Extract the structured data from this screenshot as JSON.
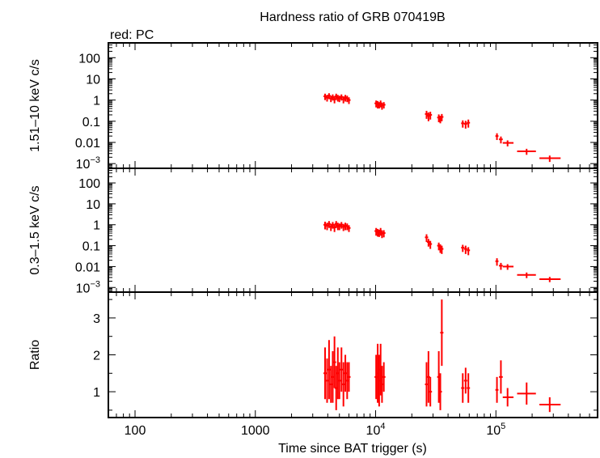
{
  "chart_data": {
    "type": "scatter",
    "title": "Hardness ratio of GRB 070419B",
    "subtitle": "red: PC",
    "xlabel": "Time since BAT trigger (s)",
    "x_scale": "log",
    "xlim": [
      60,
      700000
    ],
    "x_ticks": [
      {
        "value": 100,
        "label": "100"
      },
      {
        "value": 1000,
        "label": "1000"
      },
      {
        "value": 10000,
        "label": "10",
        "exp": "4"
      },
      {
        "value": 100000,
        "label": "10",
        "exp": "5"
      }
    ],
    "series_color": "#ff0000",
    "panels": [
      {
        "name": "hard",
        "ylabel": "1.51–10 keV c/s",
        "y_scale": "log",
        "ylim": [
          0.0006,
          500
        ],
        "y_ticks": [
          {
            "value": 100,
            "label": "100"
          },
          {
            "value": 10,
            "label": "10"
          },
          {
            "value": 1,
            "label": "1"
          },
          {
            "value": 0.1,
            "label": "0.1"
          },
          {
            "value": 0.01,
            "label": "0.01"
          },
          {
            "value": 0.001,
            "label": "10",
            "exp": "−3"
          }
        ],
        "points": [
          {
            "x": 3800,
            "y": 1.5,
            "yerr": 0.5
          },
          {
            "x": 3950,
            "y": 1.3,
            "yerr": 0.45
          },
          {
            "x": 4100,
            "y": 1.6,
            "yerr": 0.5
          },
          {
            "x": 4250,
            "y": 1.2,
            "yerr": 0.4
          },
          {
            "x": 4400,
            "y": 1.4,
            "yerr": 0.45
          },
          {
            "x": 4550,
            "y": 1.1,
            "yerr": 0.4
          },
          {
            "x": 4700,
            "y": 1.5,
            "yerr": 0.5
          },
          {
            "x": 4850,
            "y": 1.3,
            "yerr": 0.45
          },
          {
            "x": 5000,
            "y": 1.2,
            "yerr": 0.4
          },
          {
            "x": 5200,
            "y": 1.4,
            "yerr": 0.45
          },
          {
            "x": 5400,
            "y": 1.1,
            "yerr": 0.4
          },
          {
            "x": 5600,
            "y": 1.3,
            "yerr": 0.45
          },
          {
            "x": 5800,
            "y": 1.2,
            "yerr": 0.4
          },
          {
            "x": 6000,
            "y": 1.0,
            "yerr": 0.35
          },
          {
            "x": 10100,
            "y": 0.7,
            "yerr": 0.25
          },
          {
            "x": 10400,
            "y": 0.65,
            "yerr": 0.25
          },
          {
            "x": 10700,
            "y": 0.6,
            "yerr": 0.2
          },
          {
            "x": 11000,
            "y": 0.7,
            "yerr": 0.25
          },
          {
            "x": 11300,
            "y": 0.55,
            "yerr": 0.2
          },
          {
            "x": 11700,
            "y": 0.6,
            "yerr": 0.2
          },
          {
            "x": 26500,
            "y": 0.22,
            "yerr": 0.09
          },
          {
            "x": 27500,
            "y": 0.18,
            "yerr": 0.08
          },
          {
            "x": 28500,
            "y": 0.2,
            "yerr": 0.08
          },
          {
            "x": 33500,
            "y": 0.15,
            "yerr": 0.06
          },
          {
            "x": 34500,
            "y": 0.13,
            "yerr": 0.05
          },
          {
            "x": 35500,
            "y": 0.16,
            "yerr": 0.06
          },
          {
            "x": 53000,
            "y": 0.08,
            "yerr": 0.03
          },
          {
            "x": 56000,
            "y": 0.075,
            "yerr": 0.03
          },
          {
            "x": 59000,
            "y": 0.085,
            "yerr": 0.035
          },
          {
            "x": 102000,
            "y": 0.02,
            "yerr": 0.007,
            "xerr": [
              99000,
              105000
            ]
          },
          {
            "x": 110000,
            "y": 0.014,
            "yerr": 0.005,
            "xerr": [
              106000,
              114000
            ]
          },
          {
            "x": 125000,
            "y": 0.0095,
            "yerr": 0.003,
            "xerr": [
              114000,
              140000
            ]
          },
          {
            "x": 180000,
            "y": 0.0038,
            "yerr": 0.0012,
            "xerr": [
              150000,
              215000
            ]
          },
          {
            "x": 280000,
            "y": 0.0018,
            "yerr": 0.0006,
            "xerr": [
              230000,
              345000
            ]
          }
        ]
      },
      {
        "name": "soft",
        "ylabel": "0.3–1.5 keV c/s",
        "y_scale": "log",
        "ylim": [
          0.0006,
          500
        ],
        "y_ticks": [
          {
            "value": 100,
            "label": "100"
          },
          {
            "value": 10,
            "label": "10"
          },
          {
            "value": 1,
            "label": "1"
          },
          {
            "value": 0.1,
            "label": "0.1"
          },
          {
            "value": 0.01,
            "label": "0.01"
          },
          {
            "value": 0.001,
            "label": "10",
            "exp": "−3"
          }
        ],
        "points": [
          {
            "x": 3800,
            "y": 1.0,
            "yerr": 0.4
          },
          {
            "x": 3950,
            "y": 0.9,
            "yerr": 0.35
          },
          {
            "x": 4100,
            "y": 1.1,
            "yerr": 0.4
          },
          {
            "x": 4250,
            "y": 0.8,
            "yerr": 0.3
          },
          {
            "x": 4400,
            "y": 1.0,
            "yerr": 0.35
          },
          {
            "x": 4550,
            "y": 0.75,
            "yerr": 0.3
          },
          {
            "x": 4700,
            "y": 1.1,
            "yerr": 0.4
          },
          {
            "x": 4850,
            "y": 0.9,
            "yerr": 0.35
          },
          {
            "x": 5000,
            "y": 0.85,
            "yerr": 0.3
          },
          {
            "x": 5200,
            "y": 1.0,
            "yerr": 0.35
          },
          {
            "x": 5400,
            "y": 0.8,
            "yerr": 0.3
          },
          {
            "x": 5600,
            "y": 0.9,
            "yerr": 0.35
          },
          {
            "x": 5800,
            "y": 0.85,
            "yerr": 0.3
          },
          {
            "x": 6000,
            "y": 0.7,
            "yerr": 0.25
          },
          {
            "x": 10100,
            "y": 0.5,
            "yerr": 0.2
          },
          {
            "x": 10400,
            "y": 0.45,
            "yerr": 0.18
          },
          {
            "x": 10700,
            "y": 0.42,
            "yerr": 0.16
          },
          {
            "x": 11000,
            "y": 0.5,
            "yerr": 0.2
          },
          {
            "x": 11300,
            "y": 0.38,
            "yerr": 0.15
          },
          {
            "x": 11700,
            "y": 0.4,
            "yerr": 0.15
          },
          {
            "x": 26500,
            "y": 0.25,
            "yerr": 0.1
          },
          {
            "x": 27500,
            "y": 0.15,
            "yerr": 0.06
          },
          {
            "x": 28500,
            "y": 0.12,
            "yerr": 0.05
          },
          {
            "x": 33500,
            "y": 0.1,
            "yerr": 0.04
          },
          {
            "x": 34500,
            "y": 0.08,
            "yerr": 0.035
          },
          {
            "x": 35500,
            "y": 0.07,
            "yerr": 0.03
          },
          {
            "x": 53000,
            "y": 0.08,
            "yerr": 0.03
          },
          {
            "x": 56000,
            "y": 0.07,
            "yerr": 0.03
          },
          {
            "x": 59000,
            "y": 0.06,
            "yerr": 0.025
          },
          {
            "x": 102000,
            "y": 0.018,
            "yerr": 0.007,
            "xerr": [
              99000,
              105000
            ]
          },
          {
            "x": 110000,
            "y": 0.011,
            "yerr": 0.004,
            "xerr": [
              106000,
              114000
            ]
          },
          {
            "x": 125000,
            "y": 0.01,
            "yerr": 0.003,
            "xerr": [
              114000,
              140000
            ]
          },
          {
            "x": 180000,
            "y": 0.004,
            "yerr": 0.0012,
            "xerr": [
              150000,
              215000
            ]
          },
          {
            "x": 280000,
            "y": 0.0025,
            "yerr": 0.0007,
            "xerr": [
              230000,
              345000
            ]
          }
        ]
      },
      {
        "name": "ratio",
        "ylabel": "Ratio",
        "y_scale": "linear",
        "ylim": [
          0.3,
          3.7
        ],
        "y_ticks": [
          {
            "value": 1,
            "label": "1"
          },
          {
            "value": 2,
            "label": "2"
          },
          {
            "value": 3,
            "label": "3"
          }
        ],
        "points": [
          {
            "x": 3800,
            "y": 1.5,
            "yerr": 0.7
          },
          {
            "x": 3950,
            "y": 1.3,
            "yerr": 0.6
          },
          {
            "x": 4100,
            "y": 1.6,
            "yerr": 0.8
          },
          {
            "x": 4250,
            "y": 1.2,
            "yerr": 0.5
          },
          {
            "x": 4400,
            "y": 1.4,
            "yerr": 0.7
          },
          {
            "x": 4550,
            "y": 1.8,
            "yerr": 0.7
          },
          {
            "x": 4700,
            "y": 1.1,
            "yerr": 0.6
          },
          {
            "x": 4850,
            "y": 1.5,
            "yerr": 0.7
          },
          {
            "x": 5000,
            "y": 1.3,
            "yerr": 0.5
          },
          {
            "x": 5200,
            "y": 1.6,
            "yerr": 0.6
          },
          {
            "x": 5400,
            "y": 1.2,
            "yerr": 0.6
          },
          {
            "x": 5600,
            "y": 1.5,
            "yerr": 0.5
          },
          {
            "x": 5800,
            "y": 1.3,
            "yerr": 0.5
          },
          {
            "x": 6000,
            "y": 1.4,
            "yerr": 0.4
          },
          {
            "x": 10100,
            "y": 1.4,
            "yerr": 0.6
          },
          {
            "x": 10400,
            "y": 1.5,
            "yerr": 0.8
          },
          {
            "x": 10700,
            "y": 1.3,
            "yerr": 0.7
          },
          {
            "x": 11000,
            "y": 1.6,
            "yerr": 0.7
          },
          {
            "x": 11300,
            "y": 1.2,
            "yerr": 0.5
          },
          {
            "x": 11700,
            "y": 1.4,
            "yerr": 0.4
          },
          {
            "x": 26500,
            "y": 1.2,
            "yerr": 0.6
          },
          {
            "x": 27500,
            "y": 1.4,
            "yerr": 0.7
          },
          {
            "x": 28500,
            "y": 1.0,
            "yerr": 0.4
          },
          {
            "x": 33500,
            "y": 1.4,
            "yerr": 0.7
          },
          {
            "x": 34500,
            "y": 1.0,
            "yerr": 0.5
          },
          {
            "x": 35500,
            "y": 2.6,
            "yerr": 0.9
          },
          {
            "x": 53000,
            "y": 1.1,
            "yerr": 0.4
          },
          {
            "x": 56000,
            "y": 1.3,
            "yerr": 0.35
          },
          {
            "x": 59000,
            "y": 1.1,
            "yerr": 0.4
          },
          {
            "x": 102000,
            "y": 1.05,
            "yerr": 0.35,
            "xerr": [
              99000,
              105000
            ]
          },
          {
            "x": 110000,
            "y": 1.4,
            "yerr": 0.45,
            "xerr": [
              106000,
              114000
            ]
          },
          {
            "x": 125000,
            "y": 0.85,
            "yerr": 0.25,
            "xerr": [
              114000,
              140000
            ]
          },
          {
            "x": 180000,
            "y": 0.95,
            "yerr": 0.3,
            "xerr": [
              150000,
              215000
            ]
          },
          {
            "x": 280000,
            "y": 0.65,
            "yerr": 0.2,
            "xerr": [
              230000,
              345000
            ]
          }
        ]
      }
    ]
  }
}
